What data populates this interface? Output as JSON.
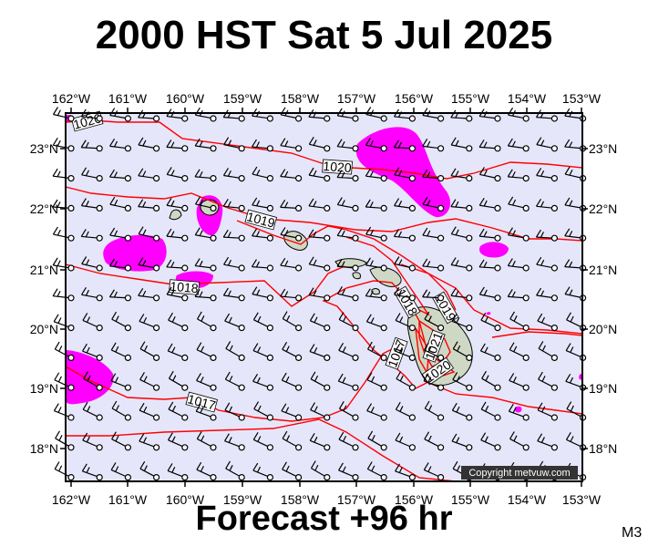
{
  "header": {
    "title": "2000 HST Sat 5 Jul 2025"
  },
  "footer": {
    "forecast": "Forecast +96 hr",
    "model": "M3"
  },
  "copyright": "Copyright metvuw.com",
  "axes": {
    "lon_labels": [
      "162°W",
      "161°W",
      "160°W",
      "159°W",
      "158°W",
      "157°W",
      "156°W",
      "155°W",
      "154°W",
      "153°W"
    ],
    "lat_labels": [
      "23°N",
      "22°N",
      "21°N",
      "20°N",
      "19°N",
      "18°N"
    ]
  },
  "isobars": [
    {
      "label": "1020"
    },
    {
      "label": "1020"
    },
    {
      "label": "1019"
    },
    {
      "label": "1019"
    },
    {
      "label": "1018"
    },
    {
      "label": "1018"
    },
    {
      "label": "1017"
    },
    {
      "label": "1017"
    },
    {
      "label": "1021"
    },
    {
      "label": "1020"
    }
  ],
  "colors": {
    "map_background": "#e6e6fb",
    "isobar": "#ff0000",
    "rain": "#ff00ff",
    "land": "#cfd8c4"
  }
}
